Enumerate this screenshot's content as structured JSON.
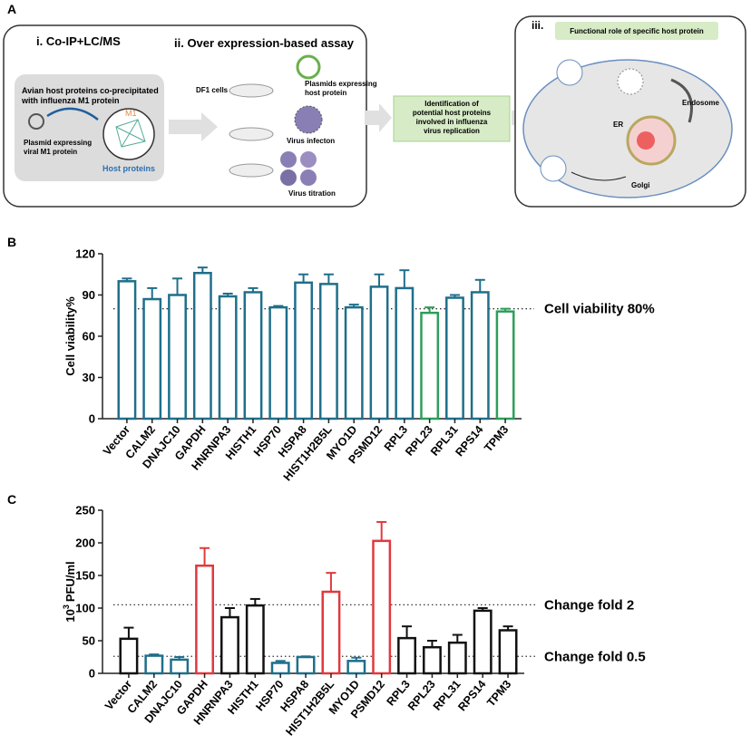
{
  "diagram": {
    "panel_label": "A",
    "coip": {
      "title": "i. Co-IP+LC/MS",
      "caption": [
        "Avian host proteins co-precipitated",
        "with influenza M1 protein"
      ],
      "m1": "M1",
      "plasmid": [
        "Plasmid expressing",
        "viral M1 protein"
      ],
      "host": "Host proteins"
    },
    "assay": {
      "title": "ii. Over expression-based assay",
      "cells": "DF1 cells",
      "plasmids": [
        "Plasmids expressing",
        "host protein"
      ],
      "infection": "Virus infecton",
      "titration": "Virus titration"
    },
    "identification": [
      "Identification of",
      "potential host proteins",
      "involved in influenza",
      "virus replication"
    ],
    "role": {
      "numeral": "iii.",
      "title": "Functional role of specific host protein",
      "endosome": "Endosome",
      "er": "ER",
      "golgi": "Golgi"
    }
  },
  "chart_data": [
    {
      "type": "bar",
      "panel_label": "B",
      "ylabel": "Cell viability%",
      "categories": [
        "Vector",
        "CALM2",
        "DNAJC10",
        "GAPDH",
        "HNRNPA3",
        "HISTH1",
        "HSP70",
        "HSPA8",
        "HIST1H2B5L",
        "MYO1D",
        "PSMD12",
        "RPL3",
        "RPL23",
        "RPL31",
        "RPS14",
        "TPM3"
      ],
      "values": [
        100,
        87,
        90,
        106,
        89,
        92,
        81,
        99,
        98,
        81,
        96,
        95,
        77,
        88,
        92,
        78
      ],
      "errors": [
        2,
        8,
        12,
        4,
        2,
        3,
        1,
        6,
        7,
        2,
        9,
        13,
        4,
        2,
        9,
        2
      ],
      "colors": [
        "#1f6f8b",
        "#1f6f8b",
        "#1f6f8b",
        "#1f6f8b",
        "#1f6f8b",
        "#1f6f8b",
        "#1f6f8b",
        "#1f6f8b",
        "#1f6f8b",
        "#1f6f8b",
        "#1f6f8b",
        "#1f6f8b",
        "#2e9e5b",
        "#1f6f8b",
        "#1f6f8b",
        "#2e9e5b"
      ],
      "ylim": [
        0,
        120
      ],
      "yticks": [
        0,
        30,
        60,
        90,
        120
      ],
      "reference_lines": [
        {
          "value": 80,
          "label": "Cell viability 80%"
        }
      ]
    },
    {
      "type": "bar",
      "panel_label": "C",
      "ylabel": {
        "base": "10",
        "exponent": "3",
        "unit": "PFU/ml"
      },
      "categories": [
        "Vector",
        "CALM2",
        "DNAJC10",
        "GAPDH",
        "HNRNPA3",
        "HISTH1",
        "HSP70",
        "HSPA8",
        "HIST1H2B5L",
        "MYO1D",
        "PSMD12",
        "RPL3",
        "RPL23",
        "RPL31",
        "RPS14",
        "TPM3"
      ],
      "values": [
        53,
        27,
        21,
        165,
        86,
        104,
        16,
        25,
        125,
        19,
        203,
        54,
        40,
        47,
        96,
        66
      ],
      "errors": [
        17,
        2,
        4,
        27,
        14,
        10,
        3,
        1,
        29,
        5,
        29,
        18,
        10,
        12,
        4,
        6
      ],
      "colors": [
        "#111111",
        "#1f6f8b",
        "#1f6f8b",
        "#e0393e",
        "#111111",
        "#111111",
        "#1f6f8b",
        "#1f6f8b",
        "#e0393e",
        "#1f6f8b",
        "#e0393e",
        "#111111",
        "#111111",
        "#111111",
        "#111111",
        "#111111"
      ],
      "ylim": [
        0,
        250
      ],
      "yticks": [
        0,
        50,
        100,
        150,
        200,
        250
      ],
      "reference_lines": [
        {
          "value": 105,
          "label": "Change fold 2"
        },
        {
          "value": 26,
          "label": "Change fold 0.5"
        }
      ]
    }
  ]
}
